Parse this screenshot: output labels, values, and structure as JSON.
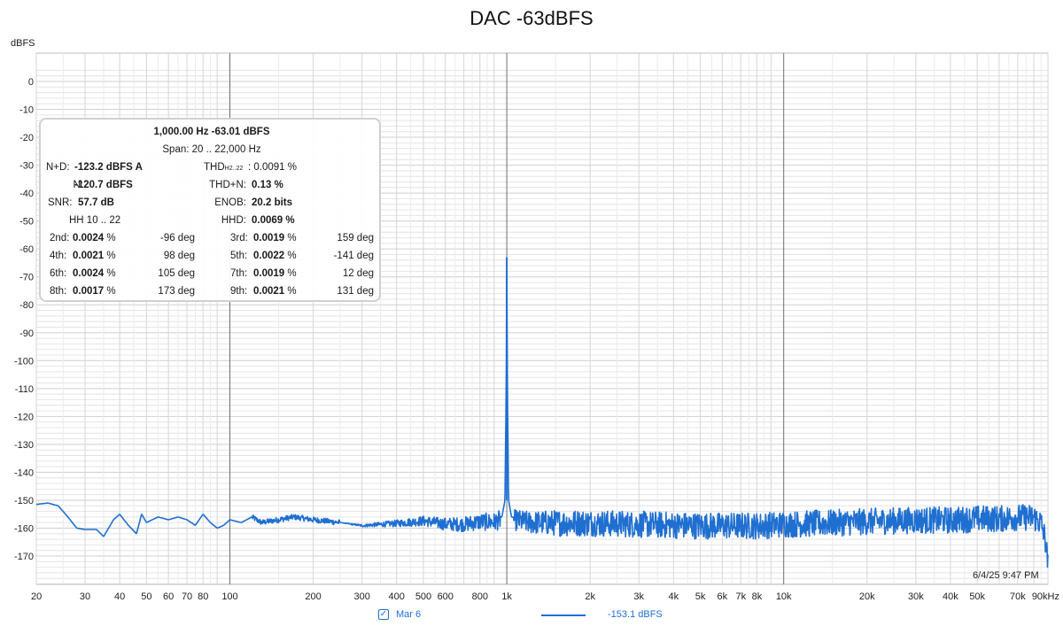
{
  "chart_data": {
    "type": "line",
    "title": "DAC -63dBFS",
    "ylabel": "dBFS",
    "xscale": "log",
    "xlim": [
      20,
      90000
    ],
    "ylim": [
      -180,
      5
    ],
    "y_ticks": [
      0,
      -10,
      -20,
      -30,
      -40,
      -50,
      -60,
      -70,
      -80,
      -90,
      -100,
      -110,
      -120,
      -130,
      -140,
      -150,
      -160,
      -170
    ],
    "y_tick_labels": [
      "0",
      "-10",
      "-20",
      "-30",
      "-40",
      "-50",
      "-60",
      "-70",
      "-80",
      "-90",
      "-100",
      "-110",
      "-120",
      "-130",
      "-140",
      "-150",
      "-160",
      "-170"
    ],
    "x_ticks": [
      20,
      30,
      40,
      50,
      60,
      70,
      80,
      100,
      200,
      300,
      400,
      500,
      600,
      800,
      1000,
      2000,
      3000,
      4000,
      5000,
      6000,
      7000,
      8000,
      10000,
      20000,
      30000,
      40000,
      50000,
      70000,
      90000
    ],
    "x_tick_labels": [
      "20",
      "30",
      "40",
      "50",
      "60",
      "70",
      "80",
      "100",
      "200",
      "300",
      "400",
      "500",
      "600",
      "800",
      "1k",
      "2k",
      "3k",
      "4k",
      "5k",
      "6k",
      "7k",
      "8k",
      "10k",
      "20k",
      "30k",
      "40k",
      "50k",
      "70k",
      "90kHz"
    ],
    "grid": true,
    "series": [
      {
        "name": "Mar 6",
        "color": "#1f6fd1",
        "x": [
          20,
          22,
          24,
          26,
          28,
          30,
          33,
          35,
          38,
          40,
          43,
          46,
          48,
          50,
          55,
          60,
          65,
          70,
          75,
          80,
          85,
          90,
          95,
          100,
          110,
          120,
          130,
          150,
          170,
          200,
          250,
          300,
          400,
          500,
          600,
          700,
          800,
          900,
          960,
          985,
          995,
          1000,
          1005,
          1015,
          1040,
          1200,
          1500,
          2000,
          3000,
          5000,
          8000,
          10000,
          15000,
          20000,
          30000,
          40000,
          50000,
          60000,
          70000,
          80000,
          85000,
          88000,
          90000
        ],
        "y": [
          -151.5,
          -151,
          -152,
          -156,
          -160,
          -160.5,
          -160.5,
          -163,
          -157,
          -155,
          -159,
          -162,
          -155,
          -158,
          -156,
          -157,
          -156,
          -157,
          -159,
          -155,
          -158,
          -160,
          -159,
          -157,
          -158,
          -156,
          -158,
          -157,
          -156,
          -157,
          -158,
          -159,
          -158,
          -157,
          -158,
          -158,
          -157,
          -157,
          -156,
          -150,
          -110,
          -63,
          -110,
          -150,
          -156,
          -157,
          -157,
          -157,
          -157.5,
          -158,
          -158,
          -157.5,
          -157,
          -156.5,
          -156,
          -156,
          -155.5,
          -155.5,
          -155,
          -155,
          -157,
          -163,
          -172
        ],
        "noise_envelope_db": 6
      }
    ],
    "legend": {
      "position": "bottom-center",
      "series_label": "Mar 6",
      "value_label": "-153.1 dBFS",
      "checked": true
    }
  },
  "stats_box": {
    "header": "1,000.00 Hz  -63.01 dBFS",
    "span": "Span: 20 .. 22,000 Hz",
    "nd_label": "N+D:",
    "nd_value": "-123.2 dBFS A",
    "thd_label": "THD",
    "thd_sub": "H2..22",
    "thd_value": ": 0.0091 %",
    "n_label": "N:",
    "n_value": "-120.7 dBFS",
    "thdn_label": "THD+N:",
    "thdn_value": "0.13 %",
    "snr_label": "SNR:",
    "snr_value": "57.7 dB",
    "enob_label": "ENOB:",
    "enob_value": "20.2 bits",
    "hh_label": "HH 10 .. 22",
    "hhd_label": "HHD:",
    "hhd_value": "0.0069 %",
    "harmonics": [
      {
        "label": "2nd:",
        "pct": "0.0024",
        "unit": "%",
        "phase": "-96 deg"
      },
      {
        "label": "3rd:",
        "pct": "0.0019",
        "unit": "%",
        "phase": "159 deg"
      },
      {
        "label": "4th:",
        "pct": "0.0021",
        "unit": "%",
        "phase": "98 deg"
      },
      {
        "label": "5th:",
        "pct": "0.0022",
        "unit": "%",
        "phase": "-141 deg"
      },
      {
        "label": "6th:",
        "pct": "0.0024",
        "unit": "%",
        "phase": "105 deg"
      },
      {
        "label": "7th:",
        "pct": "0.0019",
        "unit": "%",
        "phase": "12 deg"
      },
      {
        "label": "8th:",
        "pct": "0.0017",
        "unit": "%",
        "phase": "173 deg"
      },
      {
        "label": "9th:",
        "pct": "0.0021",
        "unit": "%",
        "phase": "131 deg"
      }
    ]
  },
  "timestamp": "6/4/25 9:47 PM"
}
